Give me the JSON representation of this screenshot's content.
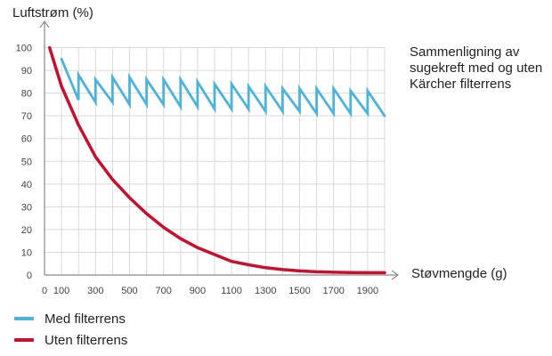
{
  "chart_data": {
    "type": "line",
    "description": "Sammenligning av sugekreft med og uten Kärcher filterrens",
    "xlabel": "Støvmengde (g)",
    "ylabel": "Luftstrøm (%)",
    "xlim": [
      0,
      2000
    ],
    "ylim": [
      0,
      110
    ],
    "x_ticks": [
      0,
      100,
      300,
      500,
      700,
      900,
      1100,
      1300,
      1500,
      1700,
      1900
    ],
    "y_ticks": [
      0,
      10,
      20,
      30,
      40,
      50,
      60,
      70,
      80,
      90,
      100
    ],
    "grid": true,
    "legend_position": "bottom-left",
    "series": [
      {
        "name": "Med filterrens",
        "color": "#4bb3dc",
        "x": [
          100,
          200,
          200,
          300,
          300,
          400,
          400,
          500,
          500,
          600,
          600,
          700,
          700,
          800,
          800,
          900,
          900,
          1000,
          1000,
          1100,
          1100,
          1200,
          1200,
          1300,
          1300,
          1400,
          1400,
          1500,
          1500,
          1600,
          1600,
          1700,
          1700,
          1800,
          1800,
          1900,
          1900,
          2000
        ],
        "y": [
          95,
          77,
          88,
          76,
          86,
          76,
          87,
          75,
          87,
          75,
          86,
          75,
          86,
          74,
          86,
          74,
          85,
          73,
          84,
          73,
          84,
          73,
          83,
          72,
          83,
          72,
          82,
          72,
          82,
          71,
          82,
          71,
          82,
          71,
          81,
          71,
          81,
          70
        ]
      },
      {
        "name": "Uten filterrens",
        "color": "#c8102e",
        "x": [
          30,
          100,
          200,
          300,
          400,
          500,
          600,
          700,
          800,
          900,
          1000,
          1100,
          1200,
          1300,
          1400,
          1500,
          1600,
          1700,
          1800,
          1900,
          2000
        ],
        "y": [
          100,
          83,
          66,
          52,
          42,
          34,
          27,
          21,
          16,
          12,
          9,
          6,
          4.5,
          3.2,
          2.4,
          1.8,
          1.4,
          1.2,
          1.1,
          1.0,
          1.0
        ]
      }
    ]
  }
}
